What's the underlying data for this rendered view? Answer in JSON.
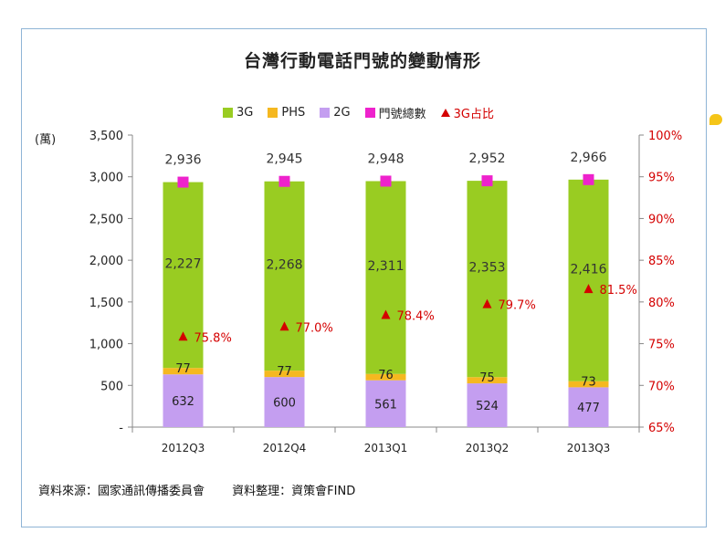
{
  "chart_data": {
    "type": "bar",
    "title": "台灣行動電話門號的變動情形",
    "unit_label": "(萬)",
    "categories": [
      "2012Q3",
      "2012Q4",
      "2013Q1",
      "2013Q2",
      "2013Q3"
    ],
    "series": [
      {
        "name": "2G",
        "values": [
          632,
          600,
          561,
          524,
          477
        ],
        "color": "#c49ef0"
      },
      {
        "name": "PHS",
        "values": [
          77,
          77,
          76,
          75,
          73
        ],
        "color": "#f5b820"
      },
      {
        "name": "3G",
        "values": [
          2227,
          2268,
          2311,
          2353,
          2416
        ],
        "color": "#99cc22"
      }
    ],
    "totals": {
      "name": "門號總數",
      "values": [
        2936,
        2945,
        2948,
        2952,
        2966
      ],
      "color": "#ee22cc"
    },
    "share_3g": {
      "name": "3G占比",
      "values": [
        75.8,
        77.0,
        78.4,
        79.7,
        81.5
      ],
      "color": "#d40000"
    },
    "legend": [
      {
        "name": "3G",
        "color": "#99cc22",
        "shape": "square"
      },
      {
        "name": "PHS",
        "color": "#f5b820",
        "shape": "square"
      },
      {
        "name": "2G",
        "color": "#c49ef0",
        "shape": "square"
      },
      {
        "name": "門號總數",
        "color": "#ee22cc",
        "shape": "square"
      },
      {
        "name": "3G占比",
        "color": "#d40000",
        "shape": "triangle"
      }
    ],
    "ylim": [
      0,
      3500
    ],
    "y_ticks": [
      0,
      500,
      1000,
      1500,
      2000,
      2500,
      3000,
      3500
    ],
    "y_tick_labels": [
      "-",
      "500",
      "1,000",
      "1,500",
      "2,000",
      "2,500",
      "3,000",
      "3,500"
    ],
    "y2lim": [
      65,
      100
    ],
    "y2_ticks": [
      65,
      70,
      75,
      80,
      85,
      90,
      95,
      100
    ],
    "y2_tick_labels": [
      "65%",
      "70%",
      "75%",
      "80%",
      "85%",
      "90%",
      "95%",
      "100%"
    ]
  },
  "source_note": "資料來源：國家通訊傳播委員會",
  "compiled_note": "資料整理：資策會FIND"
}
